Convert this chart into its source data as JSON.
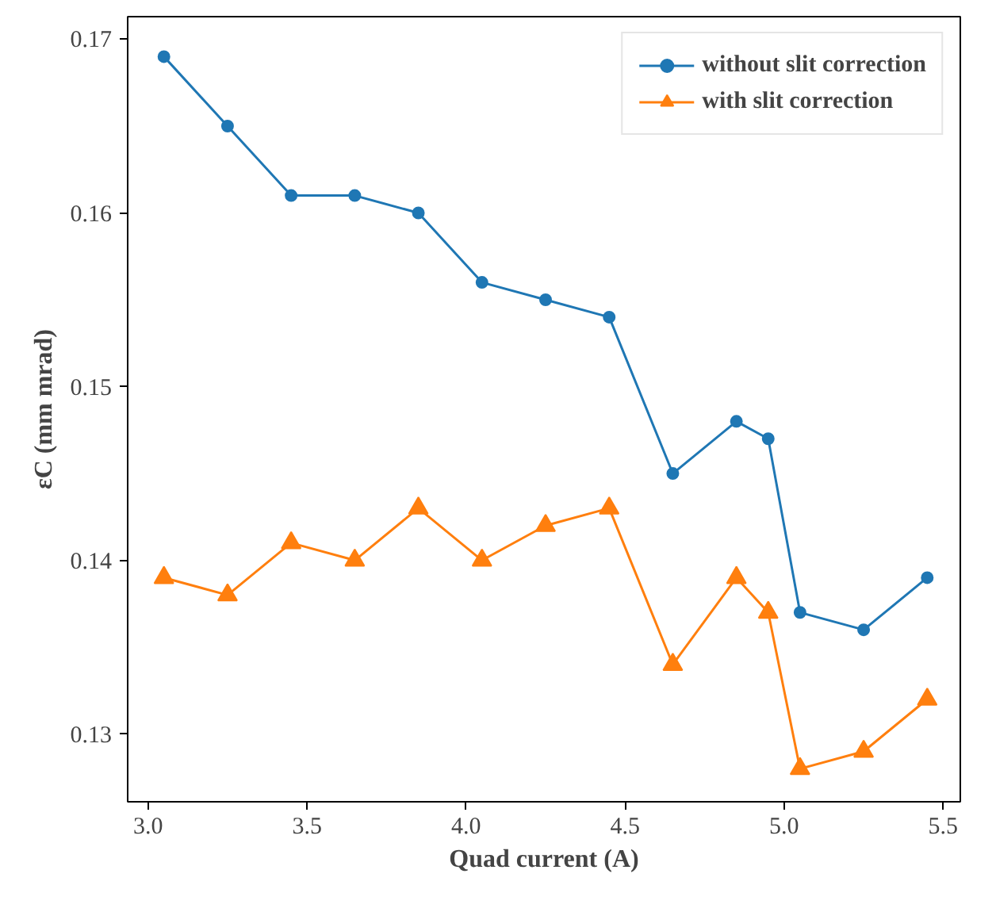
{
  "chart_data": {
    "type": "line",
    "xlabel": "Quad current (A)",
    "ylabel": "εC (mm mrad)",
    "x": [
      3.05,
      3.25,
      3.45,
      3.65,
      3.85,
      4.05,
      4.25,
      4.45,
      4.65,
      4.85,
      4.95,
      5.05,
      5.25,
      5.45
    ],
    "series": [
      {
        "name": "without slit correction",
        "color": "#1f77b4",
        "marker": "circle",
        "values": [
          0.169,
          0.165,
          0.161,
          0.161,
          0.16,
          0.156,
          0.155,
          0.154,
          0.145,
          0.148,
          0.147,
          0.137,
          0.136,
          0.139
        ]
      },
      {
        "name": "with slit correction",
        "color": "#ff7f0e",
        "marker": "triangle",
        "values": [
          0.139,
          0.138,
          0.141,
          0.14,
          0.143,
          0.14,
          0.142,
          0.143,
          0.134,
          0.139,
          0.137,
          0.128,
          0.129,
          0.132
        ]
      }
    ],
    "xlim": [
      2.936,
      5.554
    ],
    "ylim": [
      0.1261,
      0.1713
    ],
    "xticks": [
      {
        "value": 3.0,
        "label": "3.0"
      },
      {
        "value": 3.5,
        "label": "3.5"
      },
      {
        "value": 4.0,
        "label": "4.0"
      },
      {
        "value": 4.5,
        "label": "4.5"
      },
      {
        "value": 5.0,
        "label": "5.0"
      },
      {
        "value": 5.5,
        "label": "5.5"
      }
    ],
    "yticks": [
      0.13,
      0.14,
      0.15,
      0.16,
      0.17
    ],
    "grid": false,
    "legend": "top right",
    "line_style": "solid"
  }
}
